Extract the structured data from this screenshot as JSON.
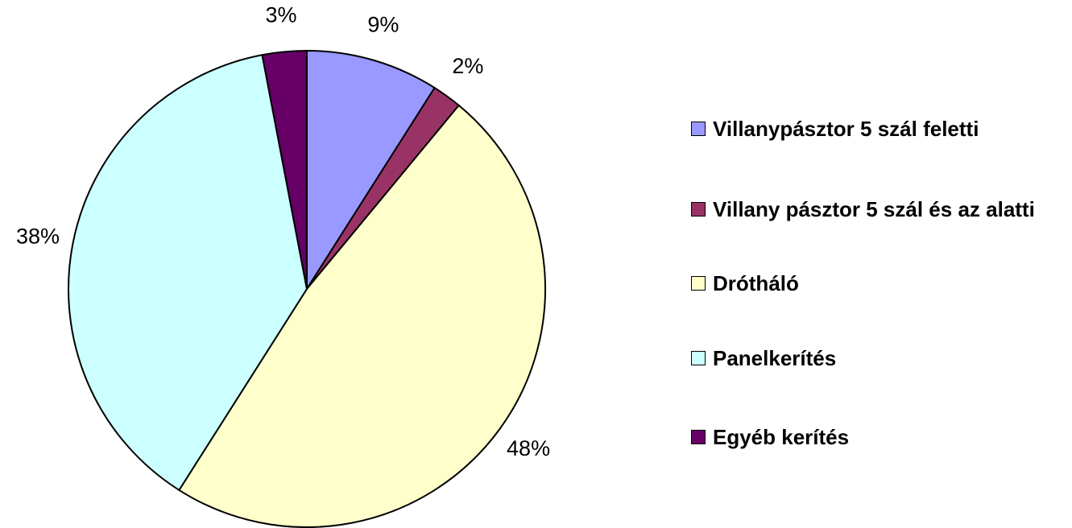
{
  "chart_data": {
    "type": "pie",
    "categories": [
      "Villanypásztor 5 szál feletti",
      "Villany pásztor 5 szál és az alatti",
      "Drótháló",
      "Panelkerítés",
      "Egyéb kerítés"
    ],
    "values": [
      9,
      2,
      48,
      38,
      3
    ],
    "value_labels": [
      "9%",
      "2%",
      "48%",
      "38%",
      "3%"
    ],
    "colors": [
      "#9999ff",
      "#993366",
      "#ffffcc",
      "#ccffff",
      "#660066"
    ],
    "legend": "right"
  }
}
